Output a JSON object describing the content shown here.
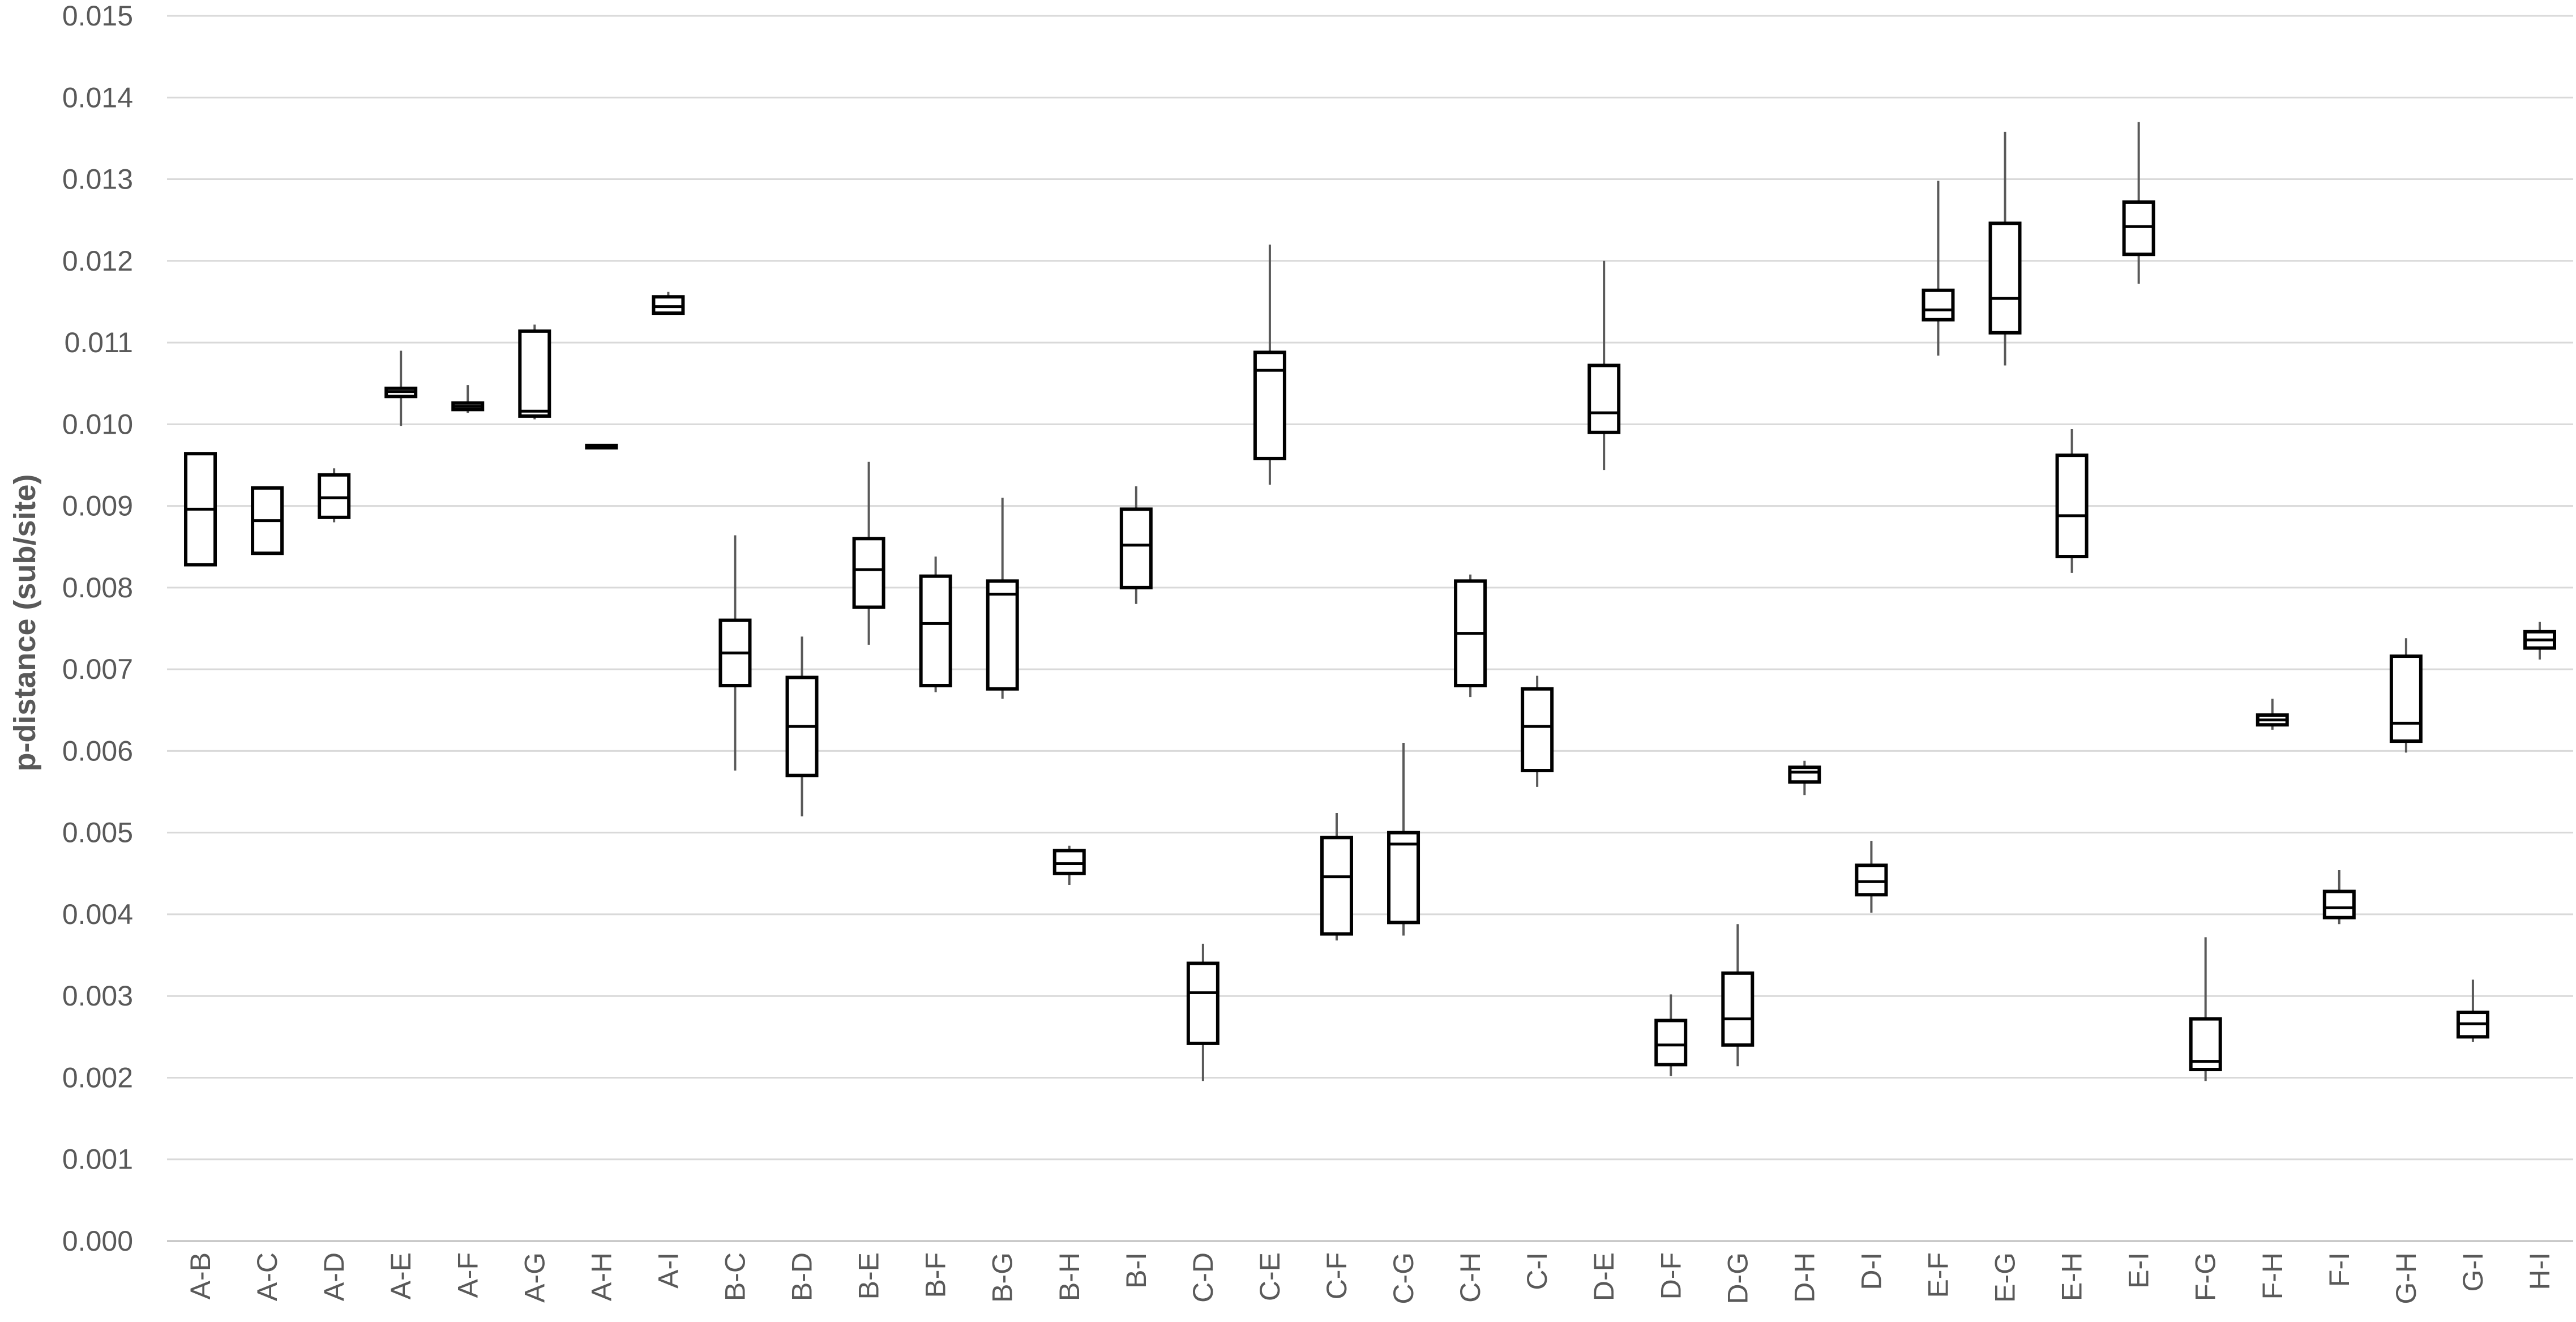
{
  "chart_data": {
    "type": "box",
    "title": "",
    "xlabel": "",
    "ylabel": "p-distance (sub/site)",
    "ylim": [
      0.0,
      0.015
    ],
    "y_ticks": [
      "0.000",
      "0.001",
      "0.002",
      "0.003",
      "0.004",
      "0.005",
      "0.006",
      "0.007",
      "0.008",
      "0.009",
      "0.010",
      "0.011",
      "0.012",
      "0.013",
      "0.014",
      "0.015"
    ],
    "y_tick_values": [
      0.0,
      0.001,
      0.002,
      0.003,
      0.004,
      0.005,
      0.006,
      0.007,
      0.008,
      0.009,
      0.01,
      0.011,
      0.012,
      0.013,
      0.014,
      0.015
    ],
    "grid": true,
    "categories": [
      "A-B",
      "A-C",
      "A-D",
      "A-E",
      "A-F",
      "A-G",
      "A-H",
      "A-I",
      "B-C",
      "B-D",
      "B-E",
      "B-F",
      "B-G",
      "B-H",
      "B-I",
      "C-D",
      "C-E",
      "C-F",
      "C-G",
      "C-H",
      "C-I",
      "D-E",
      "D-F",
      "D-G",
      "D-H",
      "D-I",
      "E-F",
      "E-G",
      "E-H",
      "E-I",
      "F-G",
      "F-H",
      "F-I",
      "G-H",
      "G-I",
      "H-I"
    ],
    "boxes": [
      {
        "min": 0.00828,
        "q1": 0.00828,
        "median": 0.00896,
        "q3": 0.00964,
        "max": 0.00964
      },
      {
        "min": 0.00842,
        "q1": 0.00842,
        "median": 0.00882,
        "q3": 0.00922,
        "max": 0.00922
      },
      {
        "min": 0.0088,
        "q1": 0.00886,
        "median": 0.0091,
        "q3": 0.00938,
        "max": 0.00946
      },
      {
        "min": 0.00998,
        "q1": 0.01034,
        "median": 0.0104,
        "q3": 0.01044,
        "max": 0.0109
      },
      {
        "min": 0.01014,
        "q1": 0.01018,
        "median": 0.01022,
        "q3": 0.01026,
        "max": 0.01048
      },
      {
        "min": 0.01006,
        "q1": 0.0101,
        "median": 0.01016,
        "q3": 0.01114,
        "max": 0.01122
      },
      {
        "min": 0.00974,
        "q1": 0.00974,
        "median": 0.00974,
        "q3": 0.00974,
        "max": 0.00974
      },
      {
        "min": 0.01136,
        "q1": 0.01136,
        "median": 0.01144,
        "q3": 0.01156,
        "max": 0.01162
      },
      {
        "min": 0.00576,
        "q1": 0.0068,
        "median": 0.0072,
        "q3": 0.0076,
        "max": 0.00864
      },
      {
        "min": 0.0052,
        "q1": 0.0057,
        "median": 0.0063,
        "q3": 0.0069,
        "max": 0.0074
      },
      {
        "min": 0.0073,
        "q1": 0.00776,
        "median": 0.00822,
        "q3": 0.0086,
        "max": 0.00954
      },
      {
        "min": 0.00672,
        "q1": 0.0068,
        "median": 0.00756,
        "q3": 0.00814,
        "max": 0.00838
      },
      {
        "min": 0.00664,
        "q1": 0.00676,
        "median": 0.00792,
        "q3": 0.00808,
        "max": 0.0091
      },
      {
        "min": 0.00436,
        "q1": 0.0045,
        "median": 0.00462,
        "q3": 0.00478,
        "max": 0.00484
      },
      {
        "min": 0.0078,
        "q1": 0.008,
        "median": 0.00852,
        "q3": 0.00896,
        "max": 0.00924
      },
      {
        "min": 0.00196,
        "q1": 0.00242,
        "median": 0.00304,
        "q3": 0.0034,
        "max": 0.00364
      },
      {
        "min": 0.00926,
        "q1": 0.00958,
        "median": 0.01066,
        "q3": 0.01088,
        "max": 0.0122
      },
      {
        "min": 0.00368,
        "q1": 0.00376,
        "median": 0.00446,
        "q3": 0.00494,
        "max": 0.00524
      },
      {
        "min": 0.00374,
        "q1": 0.0039,
        "median": 0.00486,
        "q3": 0.005,
        "max": 0.0061
      },
      {
        "min": 0.00666,
        "q1": 0.0068,
        "median": 0.00744,
        "q3": 0.00808,
        "max": 0.00816
      },
      {
        "min": 0.00556,
        "q1": 0.00576,
        "median": 0.0063,
        "q3": 0.00676,
        "max": 0.00692
      },
      {
        "min": 0.00944,
        "q1": 0.0099,
        "median": 0.01014,
        "q3": 0.01072,
        "max": 0.012
      },
      {
        "min": 0.00202,
        "q1": 0.00216,
        "median": 0.0024,
        "q3": 0.0027,
        "max": 0.00302
      },
      {
        "min": 0.00214,
        "q1": 0.0024,
        "median": 0.00272,
        "q3": 0.00328,
        "max": 0.00388
      },
      {
        "min": 0.00546,
        "q1": 0.00562,
        "median": 0.00574,
        "q3": 0.0058,
        "max": 0.00588
      },
      {
        "min": 0.00402,
        "q1": 0.00424,
        "median": 0.0044,
        "q3": 0.0046,
        "max": 0.0049
      },
      {
        "min": 0.01084,
        "q1": 0.01128,
        "median": 0.0114,
        "q3": 0.01164,
        "max": 0.01298
      },
      {
        "min": 0.01072,
        "q1": 0.01112,
        "median": 0.01154,
        "q3": 0.01246,
        "max": 0.01358
      },
      {
        "min": 0.00818,
        "q1": 0.00838,
        "median": 0.00888,
        "q3": 0.00962,
        "max": 0.00994
      },
      {
        "min": 0.01172,
        "q1": 0.01208,
        "median": 0.01242,
        "q3": 0.01272,
        "max": 0.0137
      },
      {
        "min": 0.00196,
        "q1": 0.0021,
        "median": 0.0022,
        "q3": 0.00272,
        "max": 0.00372
      },
      {
        "min": 0.00626,
        "q1": 0.00632,
        "median": 0.00638,
        "q3": 0.00644,
        "max": 0.00664
      },
      {
        "min": 0.00388,
        "q1": 0.00396,
        "median": 0.00408,
        "q3": 0.00428,
        "max": 0.00454
      },
      {
        "min": 0.00598,
        "q1": 0.00612,
        "median": 0.00634,
        "q3": 0.00716,
        "max": 0.00738
      },
      {
        "min": 0.00244,
        "q1": 0.0025,
        "median": 0.00266,
        "q3": 0.0028,
        "max": 0.0032
      },
      {
        "min": 0.00712,
        "q1": 0.00726,
        "median": 0.00736,
        "q3": 0.00746,
        "max": 0.00758
      }
    ]
  }
}
